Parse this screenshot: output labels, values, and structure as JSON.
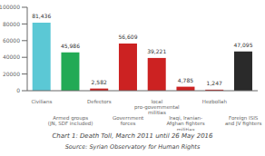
{
  "chart_data": {
    "type": "bar",
    "title": "Chart 1: Death Toll, March 2011 until 26 May 2016",
    "annotations": [
      "Source: Syrian Observatory for Human Rights"
    ],
    "categories": [
      "Civilians",
      "Armed groups\n(JN, SDF included)",
      "Defectors",
      "Government\nforces",
      "local\npro-governmental\nmilitias",
      "Iraqi, Iranian-\nAfghan fighters\nmilitias",
      "Hezbollah",
      "Foreign ISIS\nand JV fighters"
    ],
    "values": [
      81436,
      45986,
      2582,
      56609,
      39221,
      4785,
      1247,
      47095
    ],
    "value_labels": [
      "81,436",
      "45,986",
      "2,582",
      "56,609",
      "39,221",
      "4,785",
      "1,247",
      "47,095"
    ],
    "colors": [
      "#5bc8d5",
      "#22aa55",
      "#cc2222",
      "#cc2222",
      "#cc2222",
      "#cc2222",
      "#cc2222",
      "#2a2a2a"
    ],
    "ylim": [
      0,
      100000
    ],
    "yticks": [
      0,
      20000,
      40000,
      60000,
      80000,
      100000
    ],
    "data_labels": true,
    "grid": false
  }
}
